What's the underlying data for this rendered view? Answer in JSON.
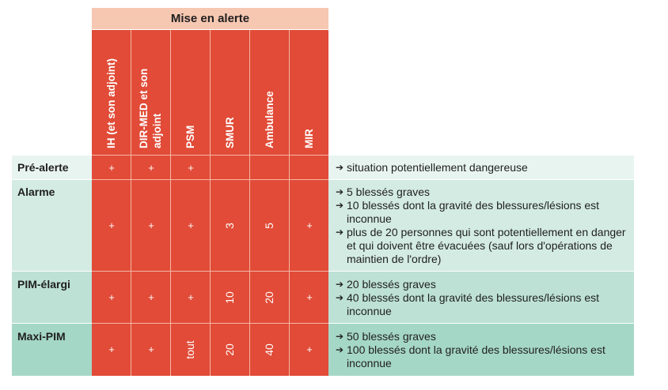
{
  "header": {
    "title": "Mise en alerte",
    "columns": [
      {
        "line1": "IH (et son adjoint)",
        "line2": ""
      },
      {
        "line1": "DIR-MED et son",
        "line2": "adjoint"
      },
      {
        "line1": "PSM",
        "line2": ""
      },
      {
        "line1": "SMUR",
        "line2": ""
      },
      {
        "line1": "Ambulance",
        "line2": ""
      },
      {
        "line1": "MIR",
        "line2": ""
      }
    ]
  },
  "rows": [
    {
      "label": "Pré-alerte",
      "values": [
        "+",
        "+",
        "+",
        "",
        "",
        ""
      ],
      "criteria": [
        "situation potentiellement dangereuse"
      ]
    },
    {
      "label": "Alarme",
      "values": [
        "+",
        "+",
        "+",
        "3",
        "5",
        "+"
      ],
      "criteria": [
        "5 blessés graves",
        "10 blessés dont la gravité des blessures/lésions est inconnue",
        "plus de 20 personnes qui sont potentiellement en danger et qui doivent être évacuées (sauf lors d'opérations de maintien de l'ordre)"
      ]
    },
    {
      "label": "PIM-élargi",
      "values": [
        "+",
        "+",
        "+",
        "10",
        "20",
        "+"
      ],
      "criteria": [
        "20 blessés graves",
        "40 blessés dont la gravité des blessures/lésions est inconnue"
      ]
    },
    {
      "label": "Maxi-PIM",
      "values": [
        "+",
        "+",
        "tout",
        "20",
        "40",
        "+"
      ],
      "criteria": [
        "50 blessés graves",
        "100 blessés dont la gravité des blessures/lésions est inconnue"
      ]
    }
  ],
  "colors": {
    "red": "#e14b37",
    "header_peach": "#f6c7b1",
    "row1": "#e8f4f0",
    "row2": "#d3ebe3",
    "row3": "#bde1d5",
    "row4": "#a5d7c6"
  }
}
